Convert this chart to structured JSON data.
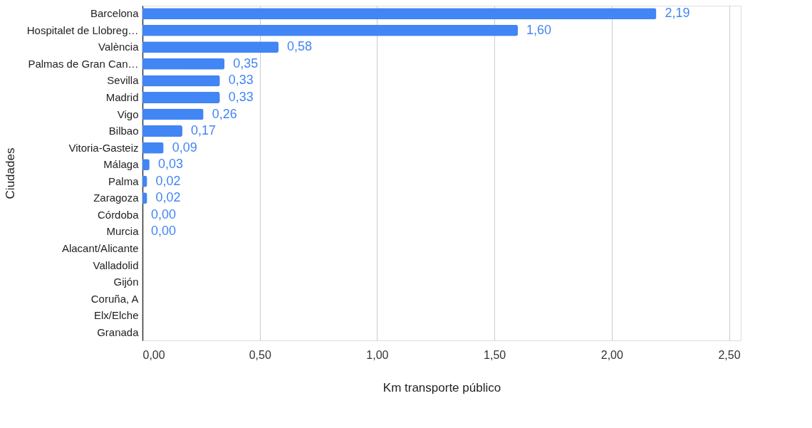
{
  "chart_data": {
    "type": "bar",
    "orientation": "horizontal",
    "xlabel": "Km transporte público",
    "ylabel": "Ciudades",
    "categories": [
      "Barcelona",
      "Hospitalet de Llobreg…",
      "València",
      "Palmas de Gran Can…",
      "Sevilla",
      "Madrid",
      "Vigo",
      "Bilbao",
      "Vitoria-Gasteiz",
      "Málaga",
      "Palma",
      "Zaragoza",
      "Córdoba",
      "Murcia",
      "Alacant/Alicante",
      "Valladolid",
      "Gijón",
      "Coruña, A",
      "Elx/Elche",
      "Granada"
    ],
    "values": [
      2.19,
      1.6,
      0.58,
      0.35,
      0.33,
      0.33,
      0.26,
      0.17,
      0.09,
      0.03,
      0.02,
      0.02,
      0.0,
      0.0,
      null,
      null,
      null,
      null,
      null,
      null
    ],
    "value_labels": [
      "2,19",
      "1,60",
      "0,58",
      "0,35",
      "0,33",
      "0,33",
      "0,26",
      "0,17",
      "0,09",
      "0,03",
      "0,02",
      "0,02",
      "0,00",
      "0,00",
      null,
      null,
      null,
      null,
      null,
      null
    ],
    "color": "#4285f4",
    "xlim": [
      0,
      2.55
    ],
    "xticks": [
      {
        "value": 0,
        "label": "0,00"
      },
      {
        "value": 0.5,
        "label": "0,50"
      },
      {
        "value": 1,
        "label": "1,00"
      },
      {
        "value": 1.5,
        "label": "1,50"
      },
      {
        "value": 2,
        "label": "2,00"
      },
      {
        "value": 2.5,
        "label": "2,50"
      }
    ],
    "grid": "x"
  }
}
